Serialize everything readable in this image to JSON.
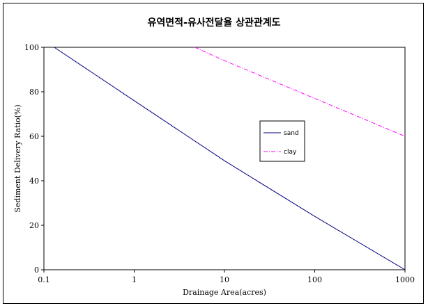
{
  "chart_data": {
    "type": "line",
    "title": "유역면적-유사전달율 상관관계도",
    "xlabel": "Drainage Area(acres)",
    "ylabel": "Sediment Delivery Ratio(%)",
    "xscale": "log",
    "xlim": [
      0.1,
      1000
    ],
    "ylim": [
      0,
      100
    ],
    "xticks": [
      "0.1",
      "1",
      "10",
      "100",
      "1000"
    ],
    "yticks": [
      "0",
      "20",
      "40",
      "60",
      "80",
      "100"
    ],
    "grid": false,
    "legend_position": "center-right",
    "series": [
      {
        "name": "sand",
        "color": "#000080",
        "style": "solid",
        "x": [
          0.13,
          1,
          10,
          100,
          1000
        ],
        "y": [
          100,
          76,
          49,
          24,
          0
        ]
      },
      {
        "name": "clay",
        "color": "#ff00ff",
        "style": "dash-dot",
        "x": [
          4.7,
          10,
          100,
          1000
        ],
        "y": [
          100,
          94,
          77,
          60
        ]
      }
    ]
  }
}
